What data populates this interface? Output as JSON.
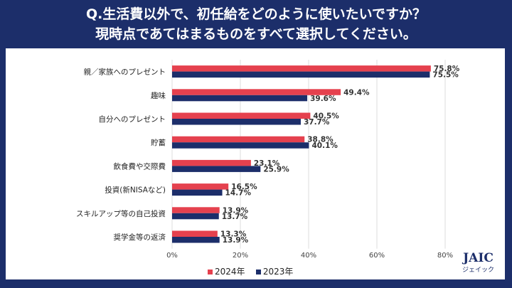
{
  "title_lines": [
    "Q.生活費以外で、初任給をどのように使いたいですか？",
    "現時点であてはまるものをすべて選択してください。"
  ],
  "logo": {
    "text": "JAIC",
    "sub": "ジェイック"
  },
  "chart_data": {
    "type": "bar",
    "orientation": "horizontal",
    "categories": [
      "親／家族へのプレゼント",
      "趣味",
      "自分へのプレゼント",
      "貯蓄",
      "飲食費や交際費",
      "投資(新NISAなど)",
      "スキルアップ等の自己投資",
      "奨学金等の返済"
    ],
    "series": [
      {
        "name": "2024年",
        "color": "#e5414e",
        "values": [
          75.8,
          49.4,
          40.5,
          38.8,
          23.1,
          16.5,
          13.9,
          13.3
        ]
      },
      {
        "name": "2023年",
        "color": "#1c2e6a",
        "values": [
          75.5,
          39.6,
          37.7,
          40.1,
          25.9,
          14.7,
          13.7,
          13.9
        ]
      }
    ],
    "xlim": [
      0,
      80
    ],
    "xticks": [
      "0%",
      "20%",
      "40%",
      "60%",
      "80%"
    ],
    "grid": "vertical",
    "legend": "bottom"
  }
}
